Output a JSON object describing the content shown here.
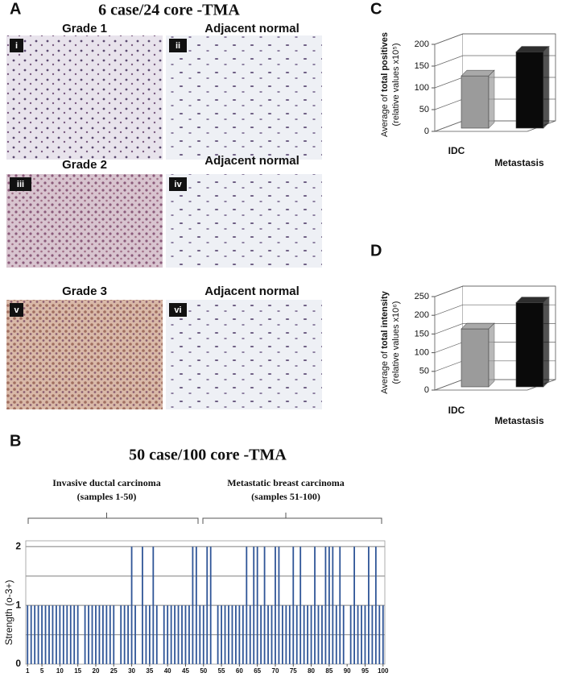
{
  "panel_letters": [
    "A",
    "B",
    "C",
    "D"
  ],
  "panel_a": {
    "title": "6 case/24 core -TMA",
    "images": [
      {
        "numeral": "i",
        "caption": "Grade 1"
      },
      {
        "numeral": "ii",
        "caption": "Adjacent normal"
      },
      {
        "numeral": "iii",
        "caption": "Grade 2"
      },
      {
        "numeral": "iv",
        "caption": "Adjacent normal"
      },
      {
        "numeral": "v",
        "caption": "Grade 3"
      },
      {
        "numeral": "vi",
        "caption": "Adjacent normal"
      }
    ]
  },
  "chart_data": [
    {
      "type": "bar3d",
      "ylabel": [
        "Average of ",
        "total positives"
      ],
      "ylabel_note": "(relative values x10⁵)",
      "categories": [
        "IDC",
        "Metastasis"
      ],
      "values": [
        120,
        175
      ],
      "colors": [
        "#9b9b9b",
        "#0a0a0a"
      ],
      "ylim": [
        0,
        200
      ],
      "yticks": [
        0,
        50,
        100,
        150,
        200
      ],
      "grid": true
    },
    {
      "type": "bar3d",
      "ylabel": [
        "Average of ",
        "total intensity"
      ],
      "ylabel_note": "(relative values x10⁶)",
      "categories": [
        "IDC",
        "Metastasis"
      ],
      "values": [
        155,
        225
      ],
      "colors": [
        "#9b9b9b",
        "#0a0a0a"
      ],
      "ylim": [
        0,
        250
      ],
      "yticks": [
        0,
        50,
        100,
        150,
        200,
        250
      ],
      "grid": true
    },
    {
      "type": "bar",
      "title": "50 case/100 core -TMA",
      "ylabel": "Strength (o-3+)",
      "annotations": [
        {
          "text": "Invasive ductal carcinoma",
          "detail": "(samples 1-50)"
        },
        {
          "text": "Metastatic breast carcinoma",
          "detail": "(samples 51-100)"
        }
      ],
      "x": [
        1,
        2,
        3,
        4,
        5,
        6,
        7,
        8,
        9,
        10,
        11,
        12,
        13,
        14,
        15,
        16,
        17,
        18,
        19,
        20,
        21,
        22,
        23,
        24,
        25,
        26,
        27,
        28,
        29,
        30,
        31,
        32,
        33,
        34,
        35,
        36,
        37,
        38,
        39,
        40,
        41,
        42,
        43,
        44,
        45,
        46,
        47,
        48,
        49,
        50,
        51,
        52,
        53,
        54,
        55,
        56,
        57,
        58,
        59,
        60,
        61,
        62,
        63,
        64,
        65,
        66,
        67,
        68,
        69,
        70,
        71,
        72,
        73,
        74,
        75,
        76,
        77,
        78,
        79,
        80,
        81,
        82,
        83,
        84,
        85,
        86,
        87,
        88,
        89,
        90,
        91,
        92,
        93,
        94,
        95,
        96,
        97,
        98,
        99,
        100
      ],
      "values": [
        1,
        1,
        1,
        1,
        1,
        1,
        1,
        1,
        1,
        1,
        1,
        1,
        1,
        1,
        1,
        0,
        1,
        1,
        1,
        1,
        1,
        1,
        1,
        1,
        1,
        0,
        1,
        1,
        1,
        2,
        1,
        0,
        2,
        1,
        1,
        2,
        1,
        0,
        1,
        1,
        1,
        1,
        1,
        1,
        1,
        1,
        2,
        2,
        1,
        1,
        2,
        2,
        0,
        1,
        1,
        1,
        1,
        1,
        1,
        1,
        1,
        2,
        1,
        2,
        2,
        1,
        2,
        1,
        1,
        2,
        2,
        1,
        1,
        1,
        2,
        1,
        2,
        1,
        1,
        1,
        2,
        1,
        1,
        2,
        2,
        2,
        1,
        2,
        1,
        0,
        1,
        2,
        1,
        1,
        1,
        2,
        1,
        2,
        1,
        1
      ],
      "color": "#2f5597",
      "xlim": [
        0.5,
        100.5
      ],
      "xticks": [
        1,
        5,
        10,
        15,
        20,
        25,
        30,
        35,
        40,
        45,
        50,
        55,
        60,
        65,
        70,
        75,
        80,
        85,
        90,
        95,
        100
      ],
      "ylim": [
        0,
        2.1
      ],
      "yticks": [
        0,
        1,
        2
      ],
      "gridlines": [
        0.5,
        1,
        1.5,
        2
      ]
    }
  ]
}
